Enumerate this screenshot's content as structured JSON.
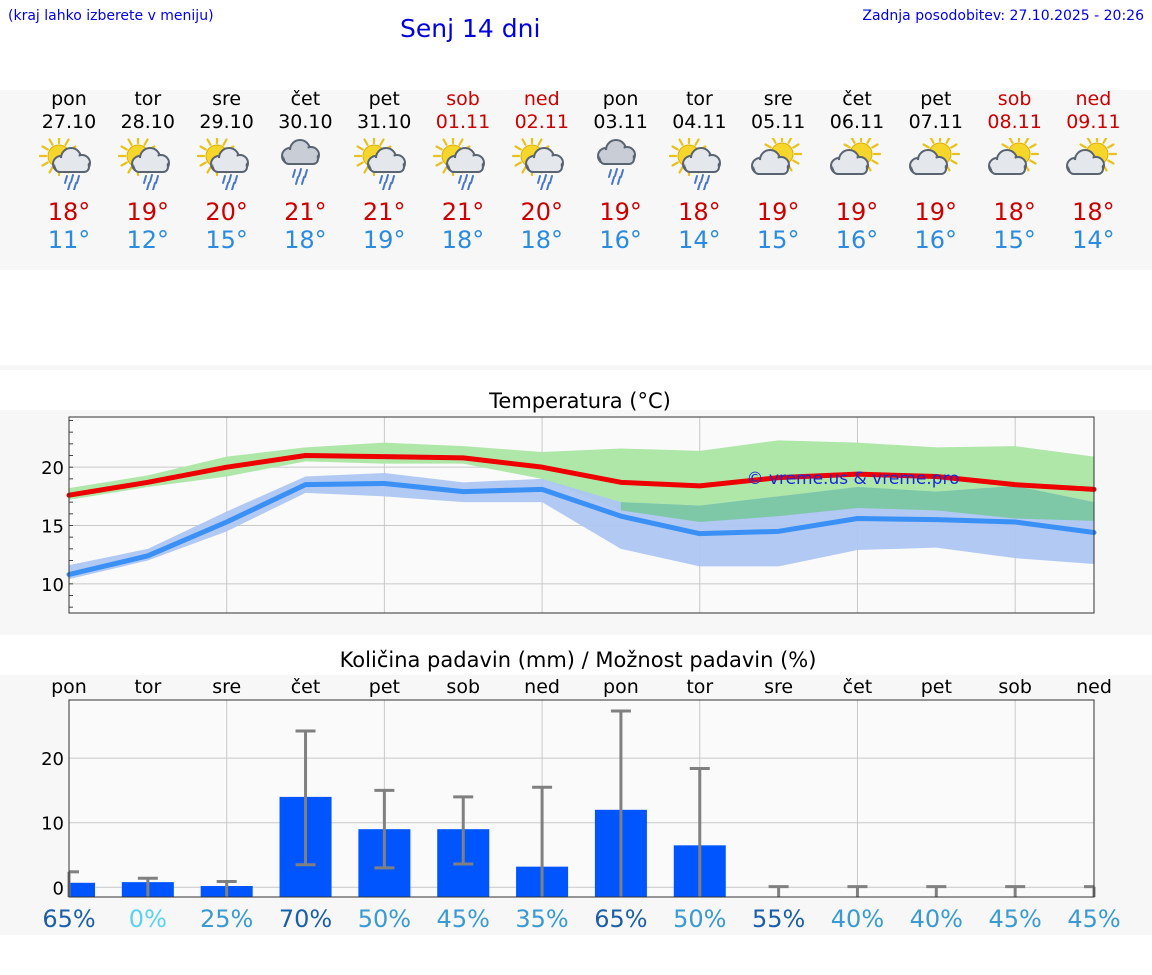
{
  "header": {
    "hint": "(kraj lahko izberete v meniju)",
    "title": "Senj 14 dni",
    "updated": "Zadnja posodobitev: 27.10.2025 - 20:26"
  },
  "colors": {
    "max_temp": "#cc0000",
    "min_temp": "#2a8be0",
    "max_line": "#ee0000",
    "min_line": "#3a90f5",
    "max_band": "#aee7a8",
    "min_band": "#adc6f2",
    "overlap_band": "#7ec8a8",
    "bar": "#0055ff",
    "error_bar": "#808080",
    "weekend": "#cc0000",
    "link": "#0000ee"
  },
  "days": [
    {
      "name": "pon",
      "date": "27.10",
      "max": "18°",
      "min": "11°",
      "icon": "sun-cloud-rain-icon",
      "weekend": false
    },
    {
      "name": "tor",
      "date": "28.10",
      "max": "19°",
      "min": "12°",
      "icon": "sun-cloud-rain-icon",
      "weekend": false
    },
    {
      "name": "sre",
      "date": "29.10",
      "max": "20°",
      "min": "15°",
      "icon": "sun-cloud-rain-icon",
      "weekend": false
    },
    {
      "name": "čet",
      "date": "30.10",
      "max": "21°",
      "min": "18°",
      "icon": "cloud-rain-icon",
      "weekend": false
    },
    {
      "name": "pet",
      "date": "31.10",
      "max": "21°",
      "min": "19°",
      "icon": "sun-cloud-rain-icon",
      "weekend": false
    },
    {
      "name": "sob",
      "date": "01.11",
      "max": "21°",
      "min": "18°",
      "icon": "sun-cloud-rain-icon",
      "weekend": true
    },
    {
      "name": "ned",
      "date": "02.11",
      "max": "20°",
      "min": "18°",
      "icon": "sun-cloud-rain-icon",
      "weekend": true
    },
    {
      "name": "pon",
      "date": "03.11",
      "max": "19°",
      "min": "16°",
      "icon": "cloud-rain-icon",
      "weekend": false
    },
    {
      "name": "tor",
      "date": "04.11",
      "max": "18°",
      "min": "14°",
      "icon": "sun-cloud-rain-icon",
      "weekend": false
    },
    {
      "name": "sre",
      "date": "05.11",
      "max": "19°",
      "min": "15°",
      "icon": "sun-cloud-icon",
      "weekend": false
    },
    {
      "name": "čet",
      "date": "06.11",
      "max": "19°",
      "min": "16°",
      "icon": "sun-cloud-icon",
      "weekend": false
    },
    {
      "name": "pet",
      "date": "07.11",
      "max": "19°",
      "min": "16°",
      "icon": "sun-cloud-icon",
      "weekend": false
    },
    {
      "name": "sob",
      "date": "08.11",
      "max": "18°",
      "min": "15°",
      "icon": "sun-cloud-icon",
      "weekend": true
    },
    {
      "name": "ned",
      "date": "09.11",
      "max": "18°",
      "min": "14°",
      "icon": "sun-cloud-icon",
      "weekend": true
    }
  ],
  "chart_data": [
    {
      "type": "line",
      "title": "Temperatura (°C)",
      "watermark": "© vreme.us & vreme.pro",
      "x": [
        0,
        1,
        2,
        3,
        4,
        5,
        6,
        7,
        8,
        9,
        10,
        11,
        12,
        13
      ],
      "ylim": [
        7.5,
        24.3
      ],
      "yticks": [
        "10",
        "15",
        "20"
      ],
      "ytick_values": [
        10,
        15,
        20
      ],
      "grid": true,
      "series": [
        {
          "key": "max",
          "values": [
            17.6,
            18.7,
            20.0,
            21.0,
            20.9,
            20.8,
            20.0,
            18.7,
            18.4,
            19.1,
            19.4,
            19.2,
            18.5,
            18.1
          ]
        },
        {
          "key": "min",
          "values": [
            10.8,
            12.4,
            15.3,
            18.5,
            18.6,
            17.9,
            18.1,
            15.8,
            14.3,
            14.5,
            15.6,
            15.5,
            15.3,
            14.4
          ]
        }
      ],
      "bands": [
        {
          "key": "max_range",
          "low": [
            17.2,
            18.3,
            19.2,
            20.5,
            20.3,
            20.3,
            19.0,
            16.3,
            15.3,
            15.8,
            16.5,
            16.3,
            15.6,
            15.4
          ],
          "high": [
            18.2,
            19.3,
            20.9,
            21.7,
            22.1,
            21.8,
            21.3,
            21.6,
            21.4,
            22.3,
            22.1,
            21.7,
            21.8,
            20.9
          ]
        },
        {
          "key": "min_range",
          "low": [
            10.4,
            12.0,
            14.5,
            17.8,
            17.5,
            17.0,
            17.0,
            13.0,
            11.5,
            11.5,
            12.9,
            13.1,
            12.2,
            11.7
          ],
          "high": [
            11.6,
            13.0,
            16.2,
            19.2,
            19.5,
            18.7,
            19.0,
            17.0,
            16.7,
            17.5,
            18.3,
            17.9,
            18.4,
            17.0
          ]
        }
      ]
    },
    {
      "type": "bar",
      "title": "Količina padavin (mm) / Možnost padavin (%)",
      "categories": [
        "pon",
        "tor",
        "sre",
        "čet",
        "pet",
        "sob",
        "ned",
        "pon",
        "tor",
        "sre",
        "čet",
        "pet",
        "sob",
        "ned"
      ],
      "values": [
        0.7,
        0.8,
        0.2,
        14.0,
        9.0,
        9.0,
        3.2,
        12.0,
        6.5,
        0,
        0,
        0,
        0,
        0
      ],
      "error_high": [
        2.4,
        1.4,
        0.9,
        24.2,
        15.0,
        14.0,
        15.5,
        27.3,
        18.4,
        0.1,
        0.1,
        0.1,
        0.1,
        0.1
      ],
      "error_low": [
        0,
        0,
        0,
        3.5,
        3.0,
        3.6,
        0,
        0,
        0,
        0,
        0,
        0,
        0,
        0
      ],
      "chance_labels": [
        "65%",
        "0%",
        "25%",
        "70%",
        "50%",
        "45%",
        "35%",
        "65%",
        "50%",
        "55%",
        "40%",
        "40%",
        "45%",
        "45%"
      ],
      "chance_colors": [
        "#1c5fa8",
        "#5cd2f2",
        "#3a9ad2",
        "#1c5fa8",
        "#3a9ad2",
        "#3a9ad2",
        "#3a9ad2",
        "#1c5fa8",
        "#3a9ad2",
        "#1c5fa8",
        "#3a9ad2",
        "#3a9ad2",
        "#3a9ad2",
        "#3a9ad2"
      ],
      "ylim": [
        -1.5,
        29
      ],
      "yticks": [
        "0",
        "10",
        "20"
      ],
      "ytick_values": [
        0,
        10,
        20
      ],
      "grid": true
    }
  ]
}
